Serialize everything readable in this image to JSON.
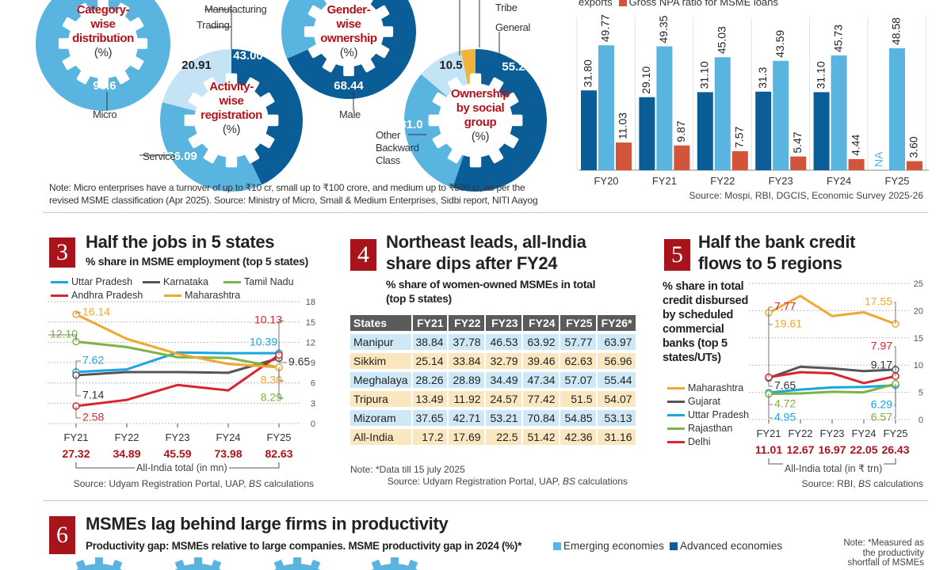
{
  "colors": {
    "dark_blue": "#0b5d97",
    "mid_blue": "#5ab4e0",
    "pale_blue": "#c4e4f5",
    "yellow": "#f0b43c",
    "red": "#b3121b",
    "npa_red": "#d2543a"
  },
  "gears": [
    {
      "title_lines": [
        "Category-",
        "wise",
        "distribution"
      ],
      "unit": "(%)",
      "slices": [
        {
          "label": "Micro",
          "value": 98.6
        }
      ]
    },
    {
      "title_lines": [
        "Activity-",
        "wise",
        "registration"
      ],
      "unit": "(%)",
      "slices": [
        {
          "label": "Manufacturing",
          "value": 43.0
        },
        {
          "label": "Service",
          "value": 36.09
        },
        {
          "label": "Trading",
          "value": 20.91
        }
      ]
    },
    {
      "title_lines": [
        "Gender-",
        "wise",
        "ownership"
      ],
      "unit": "(%)",
      "slices": [
        {
          "label": "Male",
          "value": 68.44
        }
      ]
    },
    {
      "title_lines": [
        "Ownership",
        "by social",
        "group"
      ],
      "unit": "(%)",
      "slices": [
        {
          "label": "General",
          "value": 55.2
        },
        {
          "label": "Other Backward Class",
          "label_lines": [
            "Other",
            "Backward",
            "Class"
          ],
          "value": 31.0
        },
        {
          "label": "",
          "value": 10.5
        },
        {
          "label": "Tribe",
          "value": null
        }
      ]
    }
  ],
  "top_note": [
    "Note: Micro enterprises have a turnover of up to ₹10 cr, small up to ₹100 crore, and medium up to ₹500 cr, as per the",
    "revised MSME classification (Apr 2025). Source: Ministry of Micro, Small & Medium Enterprises, Sidbi report, NITI Aayog"
  ],
  "chart_data": [
    {
      "type": "bar",
      "categories": [
        "FY20",
        "FY21",
        "FY22",
        "FY23",
        "FY24",
        "FY25"
      ],
      "series": [
        {
          "values": [
            31.8,
            29.1,
            31.1,
            31.3,
            31.1,
            null
          ],
          "null_label": "NA"
        },
        {
          "name": "exports",
          "values": [
            49.77,
            49.35,
            45.03,
            43.59,
            45.73,
            48.58
          ]
        },
        {
          "name": "Gross NPA ratio for MSME loans",
          "values": [
            11.03,
            9.87,
            7.57,
            5.47,
            4.44,
            3.6
          ]
        }
      ],
      "source": "Source: Mospi, RBI, DGCIS, Economic Survey 2025-26"
    },
    {
      "type": "line",
      "number": "3",
      "title": "Half the jobs in 5 states",
      "subtitle": "% share in MSME employment (top 5 states)",
      "categories": [
        "FY21",
        "FY22",
        "FY23",
        "FY24",
        "FY25"
      ],
      "ylim": [
        0,
        18
      ],
      "yticks": [
        0,
        3,
        6,
        9,
        12,
        15,
        18
      ],
      "series": [
        {
          "name": "Uttar Pradesh",
          "color": "#1aa6de",
          "values": [
            7.62,
            8.0,
            10.5,
            10.4,
            10.39
          ]
        },
        {
          "name": "Karnataka",
          "color": "#555555",
          "values": [
            7.14,
            7.6,
            7.6,
            7.5,
            9.65
          ]
        },
        {
          "name": "Tamil Nadu",
          "color": "#7cb342",
          "values": [
            12.1,
            11.3,
            9.8,
            9.7,
            8.29
          ]
        },
        {
          "name": "Andhra Pradesh",
          "color": "#d9262e",
          "values": [
            2.58,
            3.5,
            5.7,
            4.9,
            10.13
          ]
        },
        {
          "name": "Maharashtra",
          "color": "#f0a830",
          "values": [
            16.14,
            12.5,
            10.3,
            8.8,
            8.3
          ]
        }
      ],
      "totals": [
        "27.32",
        "34.89",
        "45.59",
        "73.98",
        "82.63"
      ],
      "totals_label": "All-India total (in mn)",
      "source_pre": "Source: Udyam Registration Portal, UAP, ",
      "source_em": "BS",
      "source_post": " calculations"
    },
    {
      "type": "table",
      "number": "4",
      "title_lines": [
        "Northeast leads, all-India",
        "share dips after FY24"
      ],
      "subtitle_lines": [
        "% share of women-owned MSMEs in total",
        "(top 5 states)"
      ],
      "columns": [
        "States",
        "FY21",
        "FY22",
        "FY23",
        "FY24",
        "FY25",
        "FY26*"
      ],
      "rows": [
        [
          "Manipur",
          "38.84",
          "37.78",
          "46.53",
          "63.92",
          "57.77",
          "63.97"
        ],
        [
          "Sikkim",
          "25.14",
          "33.84",
          "32.79",
          "39.46",
          "62.63",
          "56.96"
        ],
        [
          "Meghalaya",
          "28.26",
          "28.89",
          "34.49",
          "47.34",
          "57.07",
          "55.44"
        ],
        [
          "Tripura",
          "13.49",
          "11.92",
          "24.57",
          "77.42",
          "51.5",
          "54.07"
        ],
        [
          "Mizoram",
          "37.65",
          "42.71",
          "53.21",
          "70.84",
          "54.85",
          "53.13"
        ],
        [
          "All-India",
          "17.2",
          "17.69",
          "22.5",
          "51.42",
          "42.36",
          "31.16"
        ]
      ],
      "note": "Note: *Data till 15 july 2025",
      "source_pre": "Source: Udyam Registration Portal, UAP, ",
      "source_em": "BS",
      "source_post": " calculations"
    },
    {
      "type": "line",
      "number": "5",
      "title_lines": [
        "Half the bank credit",
        "flows to 5 regions"
      ],
      "description_lines": [
        "% share in total",
        "credit disbursed",
        "by scheduled",
        "commercial",
        "banks  (top 5",
        "states/UTs)"
      ],
      "categories": [
        "FY21",
        "FY22",
        "FY23",
        "FY24",
        "FY25"
      ],
      "ylim": [
        0,
        25
      ],
      "yticks": [
        0,
        5,
        10,
        15,
        20,
        25
      ],
      "series": [
        {
          "name": "Maharashtra",
          "color": "#f0a830",
          "values": [
            19.61,
            22.7,
            19.0,
            19.7,
            17.55
          ]
        },
        {
          "name": "Gujarat",
          "color": "#555555",
          "values": [
            7.65,
            9.7,
            9.4,
            8.9,
            9.17
          ]
        },
        {
          "name": "Uttar Pradesh",
          "color": "#1aa6de",
          "values": [
            4.95,
            5.5,
            5.9,
            6.0,
            6.29
          ]
        },
        {
          "name": "Rajasthan",
          "color": "#7cb342",
          "values": [
            4.72,
            4.8,
            5.1,
            5.0,
            6.57
          ]
        },
        {
          "name": "Delhi",
          "color": "#d9262e",
          "values": [
            7.77,
            8.7,
            8.5,
            6.7,
            7.97
          ]
        }
      ],
      "totals": [
        "11.01",
        "12.67",
        "16.97",
        "22.05",
        "26.43"
      ],
      "totals_label": "All-India total (in ₹ trn)",
      "source_pre": "Source: RBI, ",
      "source_em": "BS",
      "source_post": " calculations"
    }
  ],
  "section6": {
    "number": "6",
    "title": "MSMEs lag behind large firms in productivity",
    "subtitle": "Productivity gap: MSMEs relative to large companies.  MSME productivity gap in 2024 (%)*",
    "legend": [
      {
        "name": "Emerging economies",
        "color": "#5ab4e0"
      },
      {
        "name": "Advanced economies",
        "color": "#0b5d97"
      }
    ],
    "note_lines": [
      "Note: *Measured as",
      "the productivity",
      "shortfall of MSMEs"
    ]
  }
}
